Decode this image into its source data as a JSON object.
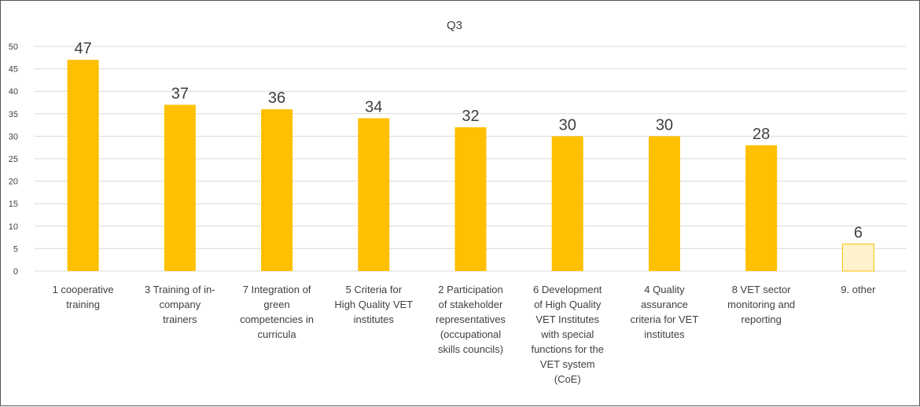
{
  "chart_data": {
    "type": "bar",
    "title": "Q3",
    "xlabel": "",
    "ylabel": "",
    "ylim": [
      0,
      50
    ],
    "yticks": [
      0,
      5,
      10,
      15,
      20,
      25,
      30,
      35,
      40,
      45,
      50
    ],
    "grid": true,
    "legend": "none",
    "categories": [
      [
        "1 cooperative",
        "training"
      ],
      [
        "3 Training of in-",
        "company",
        "trainers"
      ],
      [
        "7 Integration of",
        "green",
        "competencies in",
        "curricula"
      ],
      [
        "5 Criteria for",
        "High Quality VET",
        "institutes"
      ],
      [
        "2 Participation",
        "of stakeholder",
        "representatives",
        "(occupational",
        "skills councils)"
      ],
      [
        "6 Development",
        "of High Quality",
        "VET Institutes",
        "with special",
        "functions for the",
        "VET system",
        "(CoE)"
      ],
      [
        "4 Quality",
        "assurance",
        "criteria for VET",
        "institutes"
      ],
      [
        "8 VET sector",
        "monitoring and",
        "reporting"
      ],
      [
        "9. other"
      ]
    ],
    "values": [
      47,
      37,
      36,
      34,
      32,
      30,
      30,
      28,
      6
    ],
    "colors": {
      "bar": "#FFC000",
      "bar_highlight": "#FFF2CC",
      "bar_highlight_stroke": "#FFC000",
      "grid": "#D9D9D9",
      "text": "#404040"
    },
    "highlight_index": 8
  }
}
